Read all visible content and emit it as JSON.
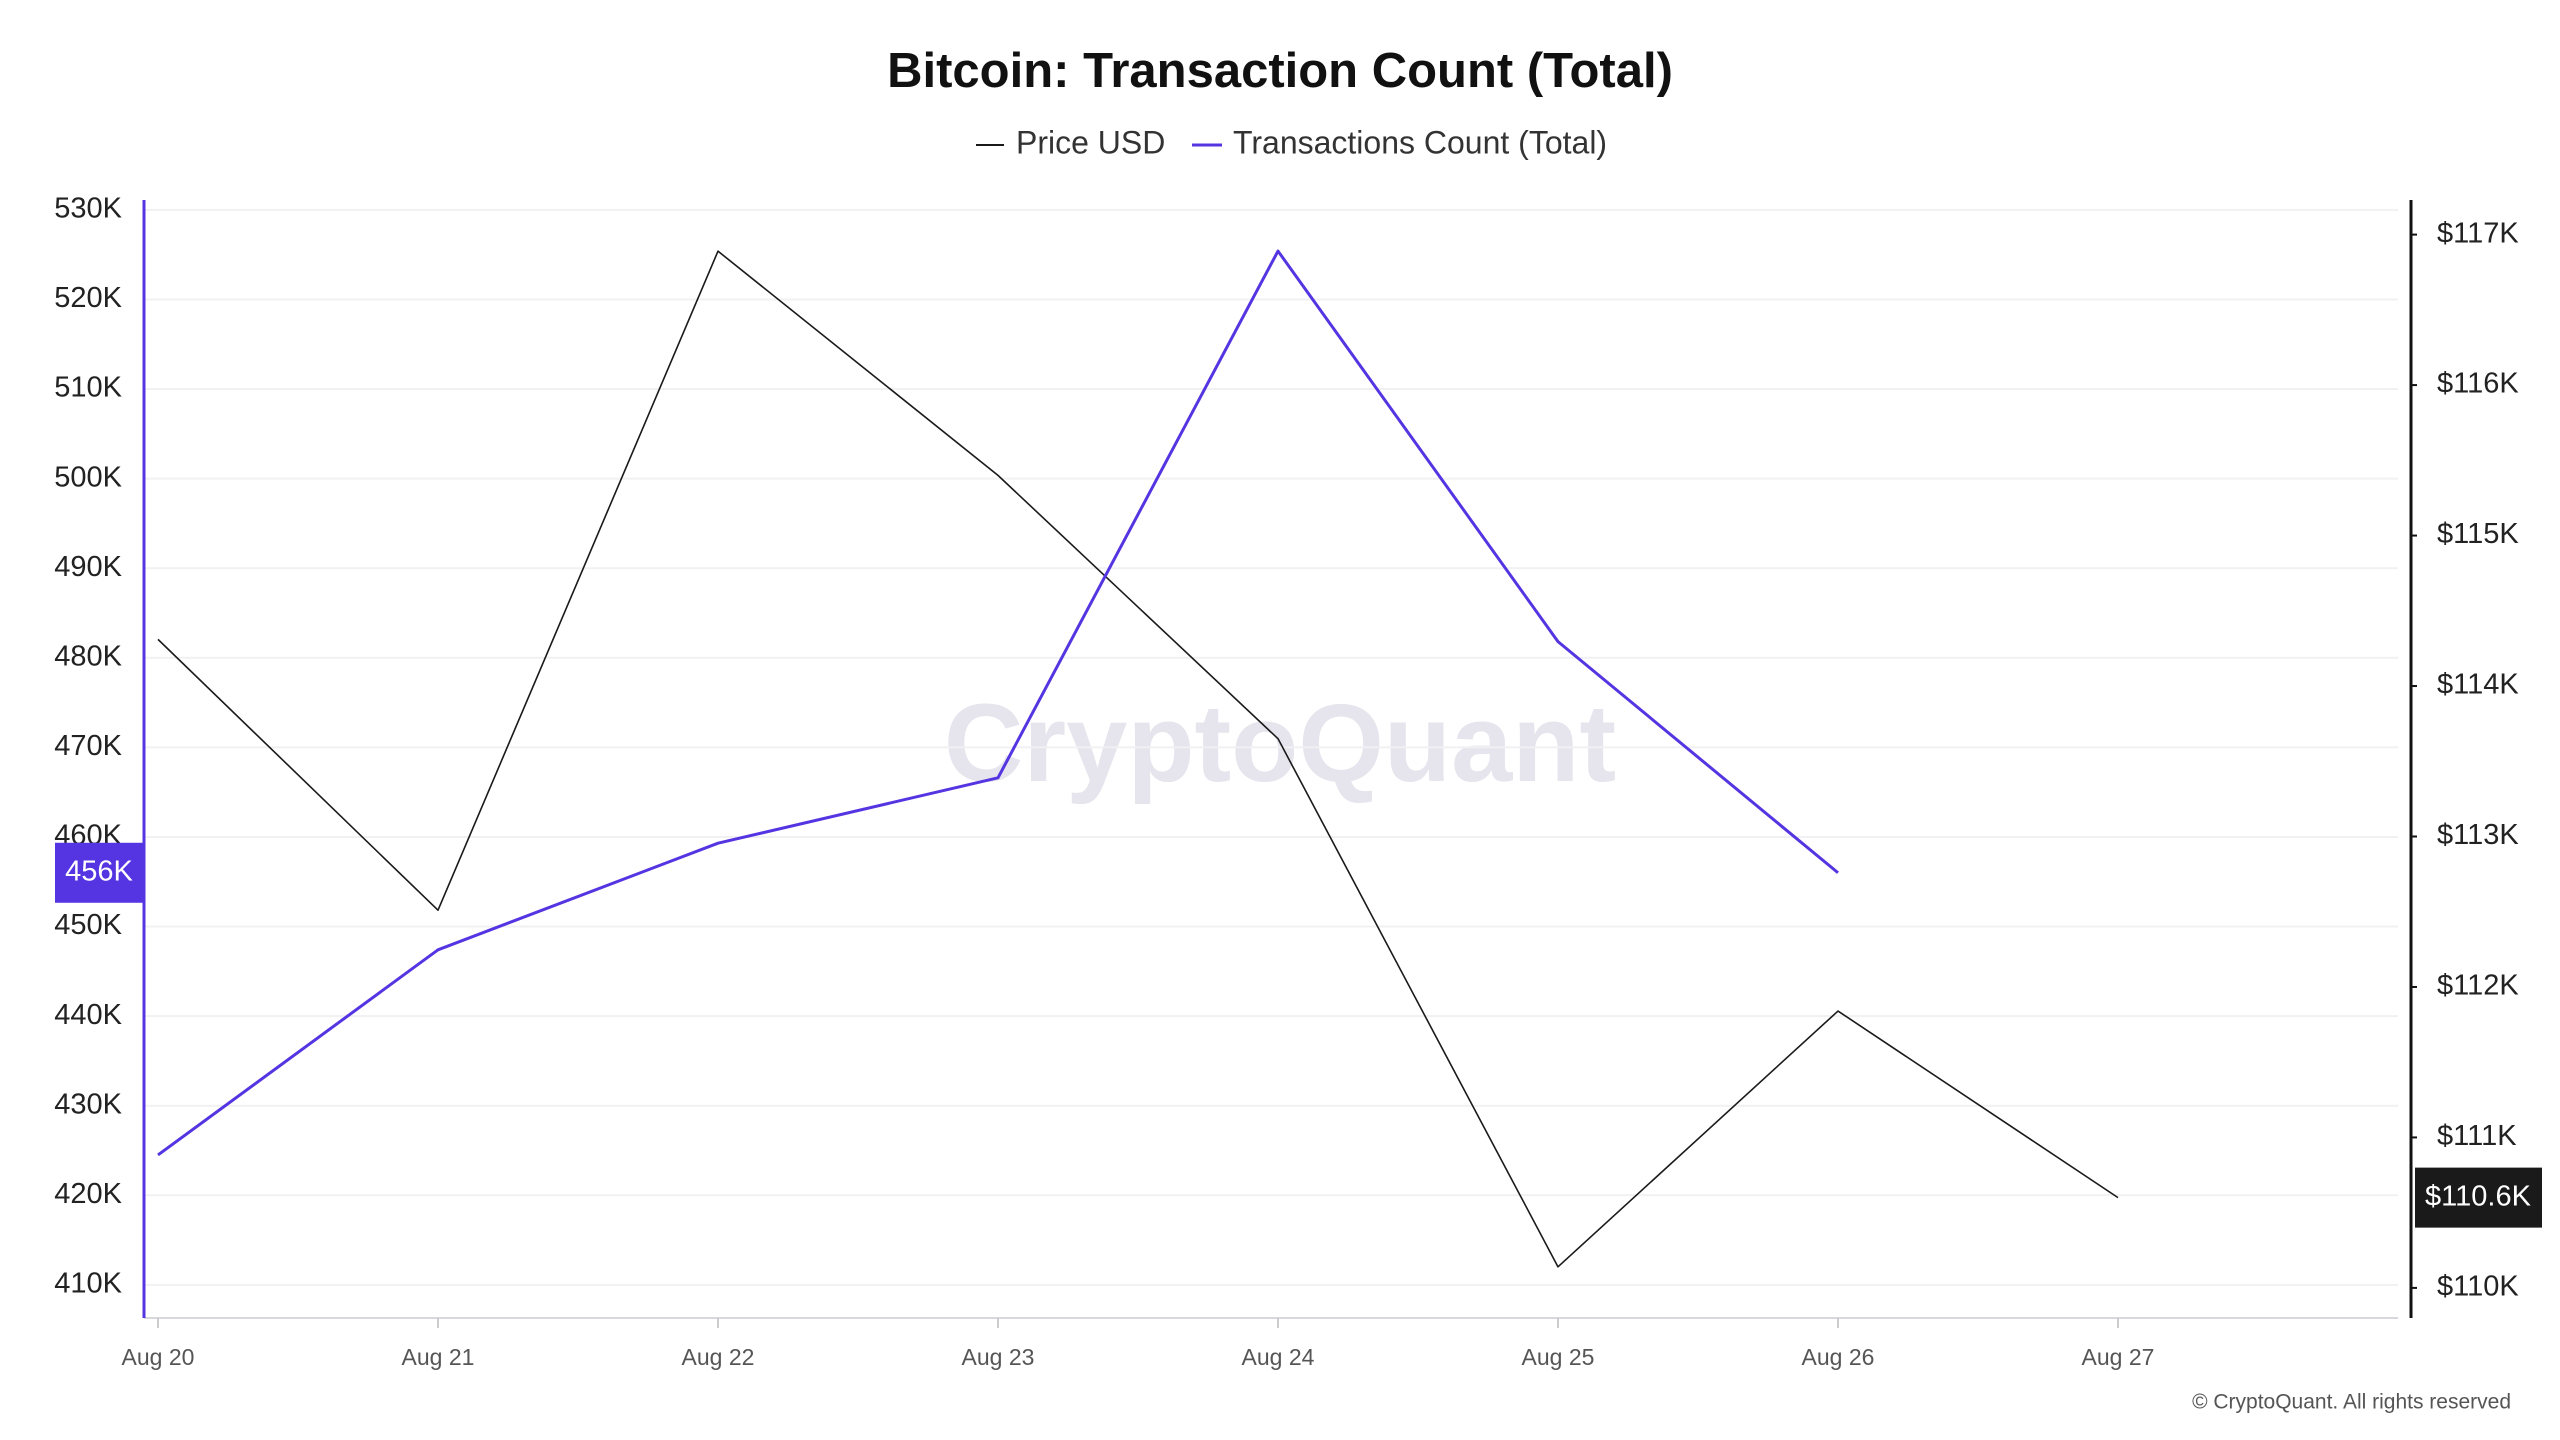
{
  "chart_data": {
    "type": "line",
    "title": "Bitcoin: Transaction Count (Total)",
    "watermark": "CryptoQuant",
    "credit": "© CryptoQuant. All rights reserved",
    "categories": [
      "Aug 20",
      "Aug 21",
      "Aug 22",
      "Aug 23",
      "Aug 24",
      "Aug 25",
      "Aug 26",
      "Aug 27"
    ],
    "series": [
      {
        "name": "Price USD",
        "color": "#1a1a1a",
        "axis": "y2",
        "values": [
          114310,
          112510,
          116890,
          115400,
          113650,
          110140,
          111840,
          110600
        ],
        "value_labels": [
          null,
          null,
          null,
          null,
          null,
          null,
          null,
          "$110.6K"
        ]
      },
      {
        "name": "Transactions Count (Total)",
        "color": "#5535e2",
        "values": [
          424500,
          447400,
          459300,
          466600,
          525400,
          481800,
          456000,
          null
        ],
        "value_labels": [
          null,
          null,
          null,
          null,
          null,
          null,
          "456K",
          null
        ]
      }
    ],
    "ylim": [
      406300,
      531100
    ],
    "yticks": [
      {
        "value": 410000,
        "label": "410K"
      },
      {
        "value": 420000,
        "label": "420K"
      },
      {
        "value": 430000,
        "label": "430K"
      },
      {
        "value": 440000,
        "label": "440K"
      },
      {
        "value": 450000,
        "label": "450K"
      },
      {
        "value": 460000,
        "label": "460K"
      },
      {
        "value": 470000,
        "label": "470K"
      },
      {
        "value": 480000,
        "label": "480K"
      },
      {
        "value": 490000,
        "label": "490K"
      },
      {
        "value": 500000,
        "label": "500K"
      },
      {
        "value": 510000,
        "label": "510K"
      },
      {
        "value": 520000,
        "label": "520K"
      },
      {
        "value": 530000,
        "label": "530K"
      }
    ],
    "y2lim": [
      109800,
      117230
    ],
    "y2ticks": [
      {
        "value": 110000,
        "label": "$110K"
      },
      {
        "value": 111000,
        "label": "$111K"
      },
      {
        "value": 112000,
        "label": "$112K"
      },
      {
        "value": 113000,
        "label": "$113K"
      },
      {
        "value": 114000,
        "label": "$114K"
      },
      {
        "value": 115000,
        "label": "$115K"
      },
      {
        "value": 116000,
        "label": "$116K"
      },
      {
        "value": 117000,
        "label": "$117K"
      }
    ],
    "grid": true
  }
}
